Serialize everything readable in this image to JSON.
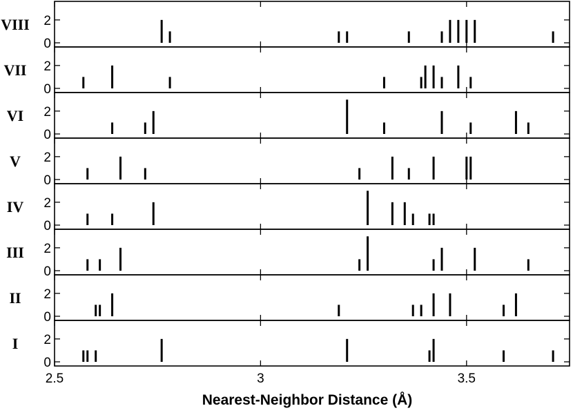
{
  "chart_data": {
    "type": "bar",
    "xlabel": "Nearest-Neighbor Distance (Å)",
    "xlim": [
      2.5,
      3.75
    ],
    "xticks": [
      2.5,
      3,
      3.5
    ],
    "xtick_labels": [
      "2.5",
      "3",
      "3.5"
    ],
    "ylim": [
      0,
      3.5
    ],
    "yticks": [
      0,
      2
    ],
    "ytick_labels": [
      "0",
      "2"
    ],
    "grid": false,
    "panels": [
      {
        "name": "VIII",
        "x": [
          2.76,
          2.78,
          3.19,
          3.21,
          3.36,
          3.44,
          3.46,
          3.48,
          3.5,
          3.52,
          3.71
        ],
        "values": [
          2,
          1,
          1,
          1,
          1,
          1,
          2,
          2,
          2,
          2,
          1
        ]
      },
      {
        "name": "VII",
        "x": [
          2.57,
          2.64,
          2.78,
          3.3,
          3.39,
          3.4,
          3.42,
          3.44,
          3.48,
          3.51
        ],
        "values": [
          1,
          2,
          1,
          1,
          1,
          2,
          2,
          1,
          2,
          1
        ]
      },
      {
        "name": "VI",
        "x": [
          2.64,
          2.72,
          2.74,
          3.21,
          3.3,
          3.44,
          3.51,
          3.62,
          3.65
        ],
        "values": [
          1,
          1,
          2,
          3,
          1,
          2,
          1,
          2,
          1
        ]
      },
      {
        "name": "V",
        "x": [
          2.58,
          2.66,
          2.72,
          3.24,
          3.32,
          3.36,
          3.42,
          3.5,
          3.51
        ],
        "values": [
          1,
          2,
          1,
          1,
          2,
          1,
          2,
          2,
          2
        ]
      },
      {
        "name": "IV",
        "x": [
          2.58,
          2.64,
          2.74,
          3.26,
          3.32,
          3.35,
          3.37,
          3.41,
          3.42
        ],
        "values": [
          1,
          1,
          2,
          3,
          2,
          2,
          1,
          1,
          1
        ]
      },
      {
        "name": "III",
        "x": [
          2.58,
          2.61,
          2.66,
          3.24,
          3.26,
          3.42,
          3.44,
          3.52,
          3.65
        ],
        "values": [
          1,
          1,
          2,
          1,
          3,
          1,
          2,
          2,
          1
        ]
      },
      {
        "name": "II",
        "x": [
          2.6,
          2.61,
          2.64,
          3.19,
          3.37,
          3.39,
          3.42,
          3.46,
          3.59,
          3.62
        ],
        "values": [
          1,
          1,
          2,
          1,
          1,
          1,
          2,
          2,
          1,
          2
        ]
      },
      {
        "name": "I",
        "x": [
          2.57,
          2.58,
          2.6,
          2.76,
          3.21,
          3.41,
          3.42,
          3.59,
          3.71
        ],
        "values": [
          1,
          1,
          1,
          2,
          2,
          1,
          2,
          1,
          1
        ]
      }
    ]
  }
}
